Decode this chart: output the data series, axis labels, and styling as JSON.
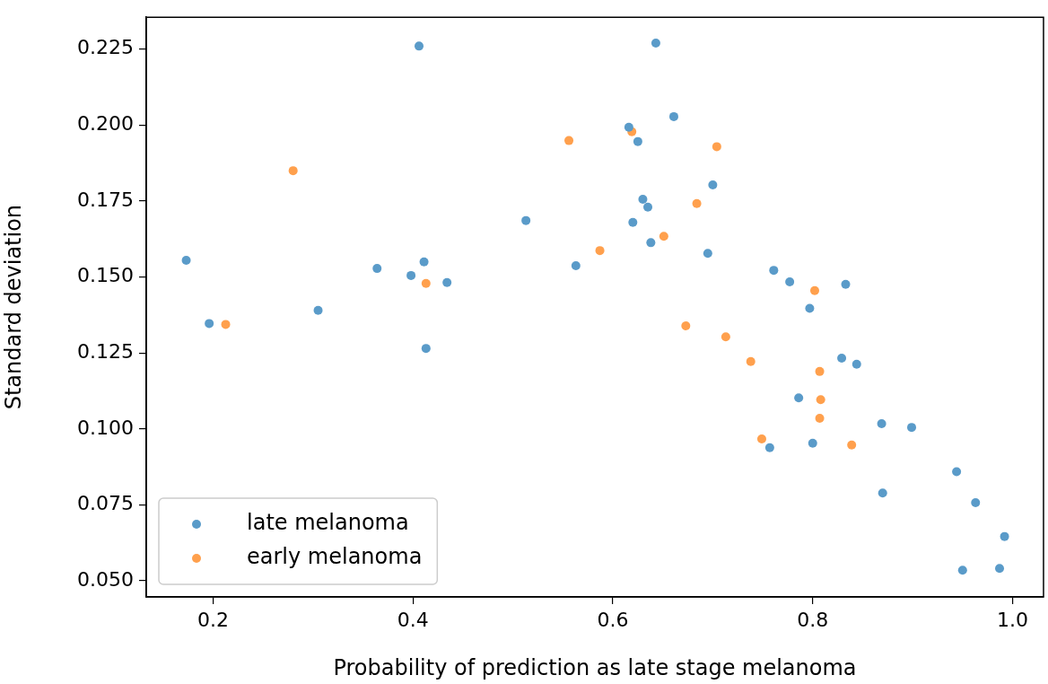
{
  "chart_data": {
    "type": "scatter",
    "xlabel": "Probability of prediction as late stage melanoma",
    "ylabel": "Standard deviation",
    "xlim": [
      0.133,
      1.031
    ],
    "ylim": [
      0.0447,
      0.2355
    ],
    "xticks": [
      {
        "value": 0.2,
        "label": "0.2"
      },
      {
        "value": 0.4,
        "label": "0.4"
      },
      {
        "value": 0.6,
        "label": "0.6"
      },
      {
        "value": 0.8,
        "label": "0.8"
      },
      {
        "value": 1.0,
        "label": "1.0"
      }
    ],
    "yticks": [
      {
        "value": 0.05,
        "label": "0.050"
      },
      {
        "value": 0.075,
        "label": "0.075"
      },
      {
        "value": 0.1,
        "label": "0.100"
      },
      {
        "value": 0.125,
        "label": "0.125"
      },
      {
        "value": 0.15,
        "label": "0.150"
      },
      {
        "value": 0.175,
        "label": "0.175"
      },
      {
        "value": 0.2,
        "label": "0.200"
      },
      {
        "value": 0.225,
        "label": "0.225"
      }
    ],
    "grid": false,
    "legend": "bottom left",
    "marker": "circle",
    "series": [
      {
        "name": "late melanoma",
        "color": "#5a9bc9",
        "x": [
          0.173,
          0.196,
          0.305,
          0.364,
          0.398,
          0.406,
          0.411,
          0.413,
          0.434,
          0.513,
          0.563,
          0.616,
          0.62,
          0.625,
          0.63,
          0.635,
          0.638,
          0.643,
          0.661,
          0.7,
          0.695,
          0.761,
          0.777,
          0.833,
          0.797,
          0.829,
          0.844,
          0.786,
          0.757,
          0.8,
          0.869,
          0.899,
          0.944,
          0.87,
          0.963,
          0.992,
          0.95,
          0.987
        ],
        "values": [
          0.1555,
          0.1347,
          0.139,
          0.1528,
          0.1505,
          0.226,
          0.155,
          0.1265,
          0.1482,
          0.1686,
          0.1537,
          0.1993,
          0.168,
          0.1946,
          0.1756,
          0.173,
          0.1613,
          0.227,
          0.2028,
          0.1803,
          0.1578,
          0.1522,
          0.1484,
          0.1476,
          0.1397,
          0.1233,
          0.1213,
          0.1102,
          0.0938,
          0.0953,
          0.1017,
          0.1005,
          0.0859,
          0.0789,
          0.0757,
          0.0646,
          0.0535,
          0.0541
        ]
      },
      {
        "name": "early melanoma",
        "color": "#ffa04d",
        "x": [
          0.2125,
          0.28,
          0.413,
          0.556,
          0.587,
          0.619,
          0.651,
          0.673,
          0.684,
          0.704,
          0.713,
          0.738,
          0.749,
          0.802,
          0.807,
          0.808,
          0.807,
          0.839
        ],
        "values": [
          0.1344,
          0.185,
          0.1479,
          0.1949,
          0.1587,
          0.1978,
          0.1634,
          0.1339,
          0.1742,
          0.1929,
          0.1303,
          0.1222,
          0.0967,
          0.1455,
          0.1189,
          0.1096,
          0.1035,
          0.0947
        ]
      }
    ]
  }
}
